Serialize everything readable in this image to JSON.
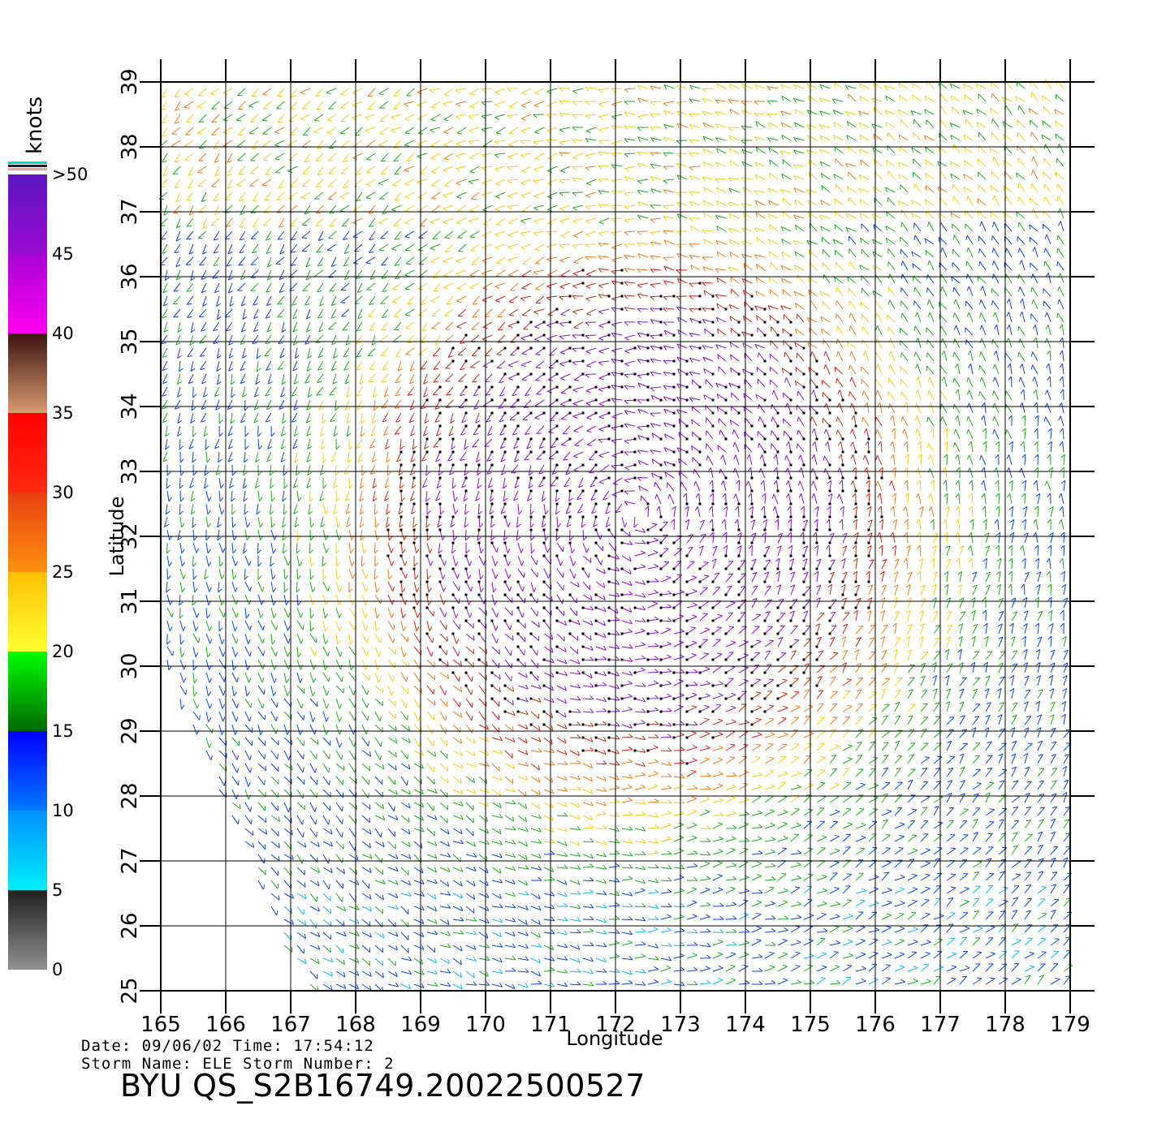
{
  "colorbar": {
    "units": "knots",
    "labels": [
      ">50",
      "45",
      "40",
      "35",
      "30",
      "25",
      "20",
      "15",
      "10",
      "5",
      "0"
    ],
    "segments": [
      {
        "from": 50,
        "to": 45,
        "colors": [
          "#5b15c0",
          "#9a0ad0"
        ]
      },
      {
        "from": 45,
        "to": 40,
        "colors": [
          "#a805d6",
          "#ff00ee"
        ]
      },
      {
        "from": 40,
        "to": 35,
        "colors": [
          "#3d1410",
          "#d79a70"
        ]
      },
      {
        "from": 35,
        "to": 30,
        "colors": [
          "#ff0000",
          "#ff2a10"
        ]
      },
      {
        "from": 30,
        "to": 25,
        "colors": [
          "#e84010",
          "#ff9010"
        ]
      },
      {
        "from": 25,
        "to": 20,
        "colors": [
          "#ffc000",
          "#ffff30"
        ]
      },
      {
        "from": 20,
        "to": 15,
        "colors": [
          "#00ff00",
          "#006800"
        ]
      },
      {
        "from": 15,
        "to": 10,
        "colors": [
          "#0000ff",
          "#0078ff"
        ]
      },
      {
        "from": 10,
        "to": 5,
        "colors": [
          "#0090ff",
          "#00f0ff"
        ]
      },
      {
        "from": 5,
        "to": 0,
        "colors": [
          "#202020",
          "#909090"
        ]
      }
    ],
    "top_lines": [
      "#00d8d8",
      "#202020",
      "#e8a0a0"
    ]
  },
  "map": {
    "lon_range": [
      165,
      179
    ],
    "lat_range": [
      25,
      39
    ],
    "lon_ticks": [
      "165",
      "166",
      "167",
      "168",
      "169",
      "170",
      "171",
      "172",
      "173",
      "174",
      "175",
      "176",
      "177",
      "178",
      "179"
    ],
    "lat_ticks": [
      "25",
      "26",
      "27",
      "28",
      "29",
      "30",
      "31",
      "32",
      "33",
      "34",
      "35",
      "36",
      "37",
      "38",
      "39"
    ],
    "xlabel": "Longitude",
    "ylabel": "Latitude",
    "storm_center": {
      "lon": 172.3,
      "lat": 32.3
    }
  },
  "footer": {
    "line1": "Date: 09/06/02  Time: 17:54:12",
    "line2": "Storm Name: ELE   Storm Number: 2",
    "product": "BYU  QS_S2B16749.20022500527"
  }
}
